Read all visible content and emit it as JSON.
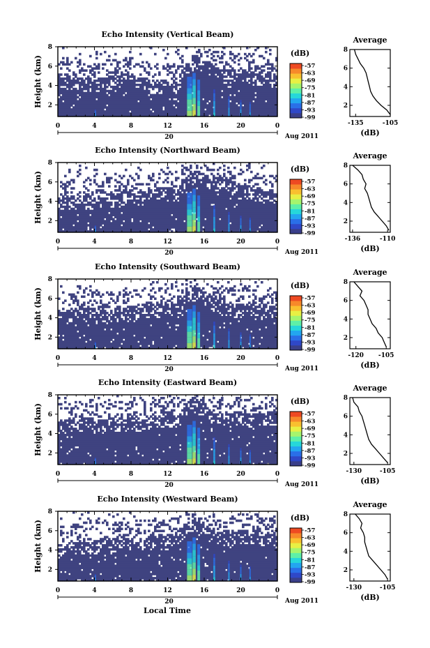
{
  "figure": {
    "xlabel": "Local Time",
    "date_label": "Aug 2011",
    "day_label": "20",
    "colorbar_unit": "(dB)",
    "avg_title": "Average",
    "avg_xlabel": "(dB)",
    "colors": {
      "background": "#3f4380",
      "colormap": [
        "#3a3f8a",
        "#2f48c8",
        "#2a6fe8",
        "#23a6f0",
        "#26d7da",
        "#5ef0a8",
        "#a6f56d",
        "#e8f044",
        "#f9c02f",
        "#f7892a",
        "#ee4a22"
      ]
    }
  },
  "chart_data": [
    {
      "type": "heatmap",
      "title": "Echo Intensity (Vertical Beam)",
      "ylabel": "Height (km)",
      "xlabel": "",
      "x_ticks": [
        "0",
        "4",
        "8",
        "12",
        "16",
        "20",
        "0"
      ],
      "x_range_hours": [
        0,
        24
      ],
      "y_ticks": [
        "2",
        "4",
        "6",
        "8"
      ],
      "y_range_km": [
        0.8,
        8.0
      ],
      "colorbar_ticks": [
        "-57",
        "-63",
        "-69",
        "-75",
        "-81",
        "-87",
        "-93",
        "-99"
      ],
      "colorbar_range_db": [
        -99,
        -57
      ],
      "echo_top_km": [
        5.2,
        5.0,
        4.9,
        4.8,
        4.7,
        4.9,
        5.0,
        5.2,
        5.1,
        4.8,
        4.6,
        4.5,
        4.4,
        4.6,
        6.6,
        7.1,
        6.6,
        6.1,
        5.7,
        5.8,
        5.6,
        5.5,
        5.4,
        5.3,
        5.0
      ],
      "average_profile": {
        "x_ticks": [
          "-135",
          "-105"
        ],
        "x_range_db": [
          -140,
          -105
        ],
        "y_ticks": [
          "2",
          "4",
          "6",
          "8"
        ],
        "y_range_km": [
          0.8,
          8.0
        ],
        "height_km": [
          8.0,
          7.5,
          7.0,
          6.5,
          6.0,
          5.5,
          5.0,
          4.5,
          4.0,
          3.5,
          3.0,
          2.5,
          2.0,
          1.5,
          1.0
        ],
        "intensity_db": [
          -136,
          -135,
          -133,
          -131,
          -128,
          -126,
          -125,
          -124,
          -123,
          -122,
          -120,
          -117,
          -113,
          -108,
          -105
        ]
      }
    },
    {
      "type": "heatmap",
      "title": "Echo Intensity (Northward Beam)",
      "ylabel": "Height (km)",
      "xlabel": "",
      "x_ticks": [
        "0",
        "4",
        "8",
        "12",
        "16",
        "20",
        "0"
      ],
      "x_range_hours": [
        0,
        24
      ],
      "y_ticks": [
        "2",
        "4",
        "6",
        "8"
      ],
      "y_range_km": [
        0.8,
        8.0
      ],
      "colorbar_ticks": [
        "-57",
        "-63",
        "-69",
        "-75",
        "-81",
        "-87",
        "-93",
        "-99"
      ],
      "colorbar_range_db": [
        -99,
        -57
      ],
      "echo_top_km": [
        4.3,
        4.5,
        4.4,
        4.6,
        4.5,
        4.7,
        4.8,
        5.0,
        5.1,
        5.0,
        5.2,
        5.5,
        5.4,
        5.3,
        6.9,
        7.3,
        6.8,
        6.3,
        6.9,
        5.9,
        5.6,
        5.4,
        5.2,
        5.0,
        4.9
      ],
      "average_profile": {
        "x_ticks": [
          "-136",
          "-110"
        ],
        "x_range_db": [
          -138,
          -108
        ],
        "y_ticks": [
          "2",
          "4",
          "6",
          "8"
        ],
        "y_range_km": [
          0.8,
          8.0
        ],
        "height_km": [
          8.0,
          7.5,
          7.0,
          6.5,
          6.0,
          5.5,
          5.0,
          4.5,
          4.0,
          3.5,
          3.0,
          2.5,
          2.0,
          1.5,
          1.0
        ],
        "intensity_db": [
          -136,
          -132,
          -129,
          -128,
          -126,
          -127,
          -125,
          -124,
          -123,
          -122,
          -120,
          -117,
          -114,
          -111,
          -109
        ]
      }
    },
    {
      "type": "heatmap",
      "title": "Echo Intensity (Southward Beam)",
      "ylabel": "Height (km)",
      "xlabel": "",
      "x_ticks": [
        "0",
        "4",
        "8",
        "12",
        "16",
        "20",
        "0"
      ],
      "x_range_hours": [
        0,
        24
      ],
      "y_ticks": [
        "2",
        "4",
        "6",
        "8"
      ],
      "y_range_km": [
        0.8,
        8.0
      ],
      "colorbar_ticks": [
        "-57",
        "-63",
        "-69",
        "-75",
        "-81",
        "-87",
        "-93",
        "-99"
      ],
      "colorbar_range_db": [
        -99,
        -57
      ],
      "echo_top_km": [
        4.9,
        4.8,
        5.0,
        5.2,
        5.0,
        4.8,
        4.9,
        5.1,
        5.2,
        5.3,
        5.4,
        5.5,
        5.6,
        5.4,
        6.7,
        7.2,
        6.7,
        6.1,
        5.6,
        5.5,
        5.4,
        5.6,
        5.5,
        5.3,
        5.2
      ],
      "average_profile": {
        "x_ticks": [
          "-120",
          "-105"
        ],
        "x_range_db": [
          -123,
          -103
        ],
        "y_ticks": [
          "2",
          "4",
          "6",
          "8"
        ],
        "y_range_km": [
          0.8,
          8.0
        ],
        "height_km": [
          8.0,
          7.5,
          7.0,
          6.5,
          6.0,
          5.5,
          5.0,
          4.5,
          4.0,
          3.5,
          3.0,
          2.5,
          2.0,
          1.5,
          1.0
        ],
        "intensity_db": [
          -121,
          -119,
          -117,
          -118,
          -116,
          -115,
          -114,
          -114,
          -113,
          -112,
          -110,
          -109,
          -107,
          -106,
          -105
        ]
      }
    },
    {
      "type": "heatmap",
      "title": "Echo Intensity (Eastward Beam)",
      "ylabel": "Height (km)",
      "xlabel": "",
      "x_ticks": [
        "0",
        "4",
        "8",
        "12",
        "16",
        "20",
        "0"
      ],
      "x_range_hours": [
        0,
        24
      ],
      "y_ticks": [
        "2",
        "4",
        "6",
        "8"
      ],
      "y_range_km": [
        0.8,
        8.0
      ],
      "colorbar_ticks": [
        "-57",
        "-63",
        "-69",
        "-75",
        "-81",
        "-87",
        "-93",
        "-99"
      ],
      "colorbar_range_db": [
        -99,
        -57
      ],
      "echo_top_km": [
        5.4,
        5.5,
        5.3,
        5.6,
        5.4,
        5.5,
        5.7,
        5.6,
        5.8,
        5.6,
        5.7,
        5.9,
        6.0,
        5.8,
        7.2,
        7.6,
        6.9,
        6.3,
        6.1,
        6.4,
        6.2,
        6.0,
        6.1,
        6.3,
        6.0
      ],
      "average_profile": {
        "x_ticks": [
          "-130",
          "-105"
        ],
        "x_range_db": [
          -133,
          -103
        ],
        "y_ticks": [
          "2",
          "4",
          "6",
          "8"
        ],
        "y_range_km": [
          0.8,
          8.0
        ],
        "height_km": [
          8.0,
          7.5,
          7.0,
          6.5,
          6.0,
          5.5,
          5.0,
          4.5,
          4.0,
          3.5,
          3.0,
          2.5,
          2.0,
          1.5,
          1.0
        ],
        "intensity_db": [
          -131,
          -130,
          -127,
          -126,
          -124,
          -123,
          -122,
          -121,
          -120,
          -119,
          -117,
          -114,
          -111,
          -108,
          -105
        ]
      }
    },
    {
      "type": "heatmap",
      "title": "Echo Intensity (Westward Beam)",
      "ylabel": "Height (km)",
      "xlabel": "Local Time",
      "x_ticks": [
        "0",
        "4",
        "8",
        "12",
        "16",
        "20",
        "0"
      ],
      "x_range_hours": [
        0,
        24
      ],
      "y_ticks": [
        "2",
        "4",
        "6",
        "8"
      ],
      "y_range_km": [
        0.8,
        8.0
      ],
      "colorbar_ticks": [
        "-57",
        "-63",
        "-69",
        "-75",
        "-81",
        "-87",
        "-93",
        "-99"
      ],
      "colorbar_range_db": [
        -99,
        -57
      ],
      "echo_top_km": [
        4.6,
        4.7,
        4.9,
        5.1,
        5.0,
        5.3,
        5.2,
        5.4,
        5.5,
        5.3,
        5.4,
        5.6,
        5.5,
        5.7,
        6.8,
        7.1,
        6.6,
        6.0,
        5.8,
        5.9,
        6.1,
        5.8,
        5.9,
        5.7,
        5.6
      ],
      "average_profile": {
        "x_ticks": [
          "-130",
          "-105"
        ],
        "x_range_db": [
          -133,
          -103
        ],
        "y_ticks": [
          "2",
          "4",
          "6",
          "8"
        ],
        "y_range_km": [
          0.8,
          8.0
        ],
        "height_km": [
          8.0,
          7.5,
          7.0,
          6.5,
          6.0,
          5.5,
          5.0,
          4.5,
          4.0,
          3.5,
          3.0,
          2.5,
          2.0,
          1.5,
          1.0
        ],
        "intensity_db": [
          -129,
          -126,
          -124,
          -125,
          -123,
          -122,
          -122,
          -121,
          -120,
          -119,
          -116,
          -113,
          -110,
          -107,
          -105
        ]
      }
    }
  ]
}
